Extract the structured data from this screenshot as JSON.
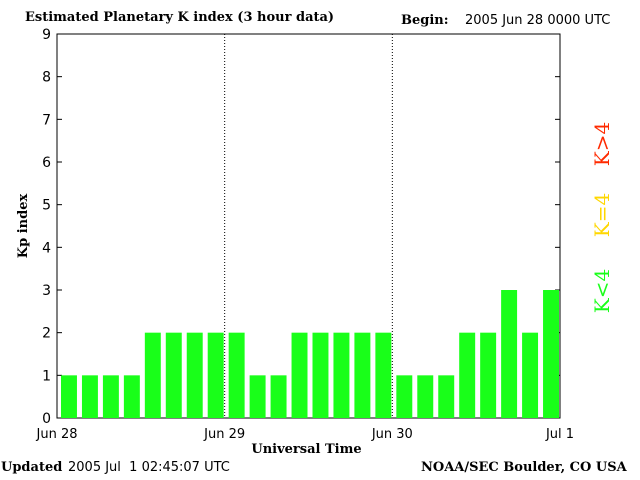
{
  "header": {
    "title": "Estimated Planetary K index (3 hour data)",
    "begin_label": "Begin:",
    "begin_value": "2005 Jun 28 0000 UTC"
  },
  "footer": {
    "updated_label": "Updated",
    "updated_value": "2005 Jul  1 02:45:07 UTC",
    "credit": "NOAA/SEC Boulder, CO USA"
  },
  "legend": [
    {
      "label": "K<4",
      "color": "#19ff19"
    },
    {
      "label": "K=4",
      "color": "#ffd700"
    },
    {
      "label": "K>4",
      "color": "#ff2a00"
    }
  ],
  "chart_data": {
    "type": "bar",
    "ylabel": "Kp index",
    "xlabel": "Universal Time",
    "ylim": [
      0,
      9
    ],
    "yticks": [
      "0",
      "1",
      "2",
      "3",
      "4",
      "5",
      "6",
      "7",
      "8",
      "9"
    ],
    "xtick_labels": [
      "Jun 28",
      "Jun 29",
      "Jun 30",
      "Jul 1"
    ],
    "bar_color": "#19ff19",
    "day_separators": "dotted vertical lines at day boundaries",
    "values": [
      1,
      1,
      1,
      1,
      2,
      2,
      2,
      2,
      2,
      1,
      1,
      2,
      2,
      2,
      2,
      2,
      1,
      1,
      1,
      2,
      2,
      3,
      2,
      3
    ]
  }
}
